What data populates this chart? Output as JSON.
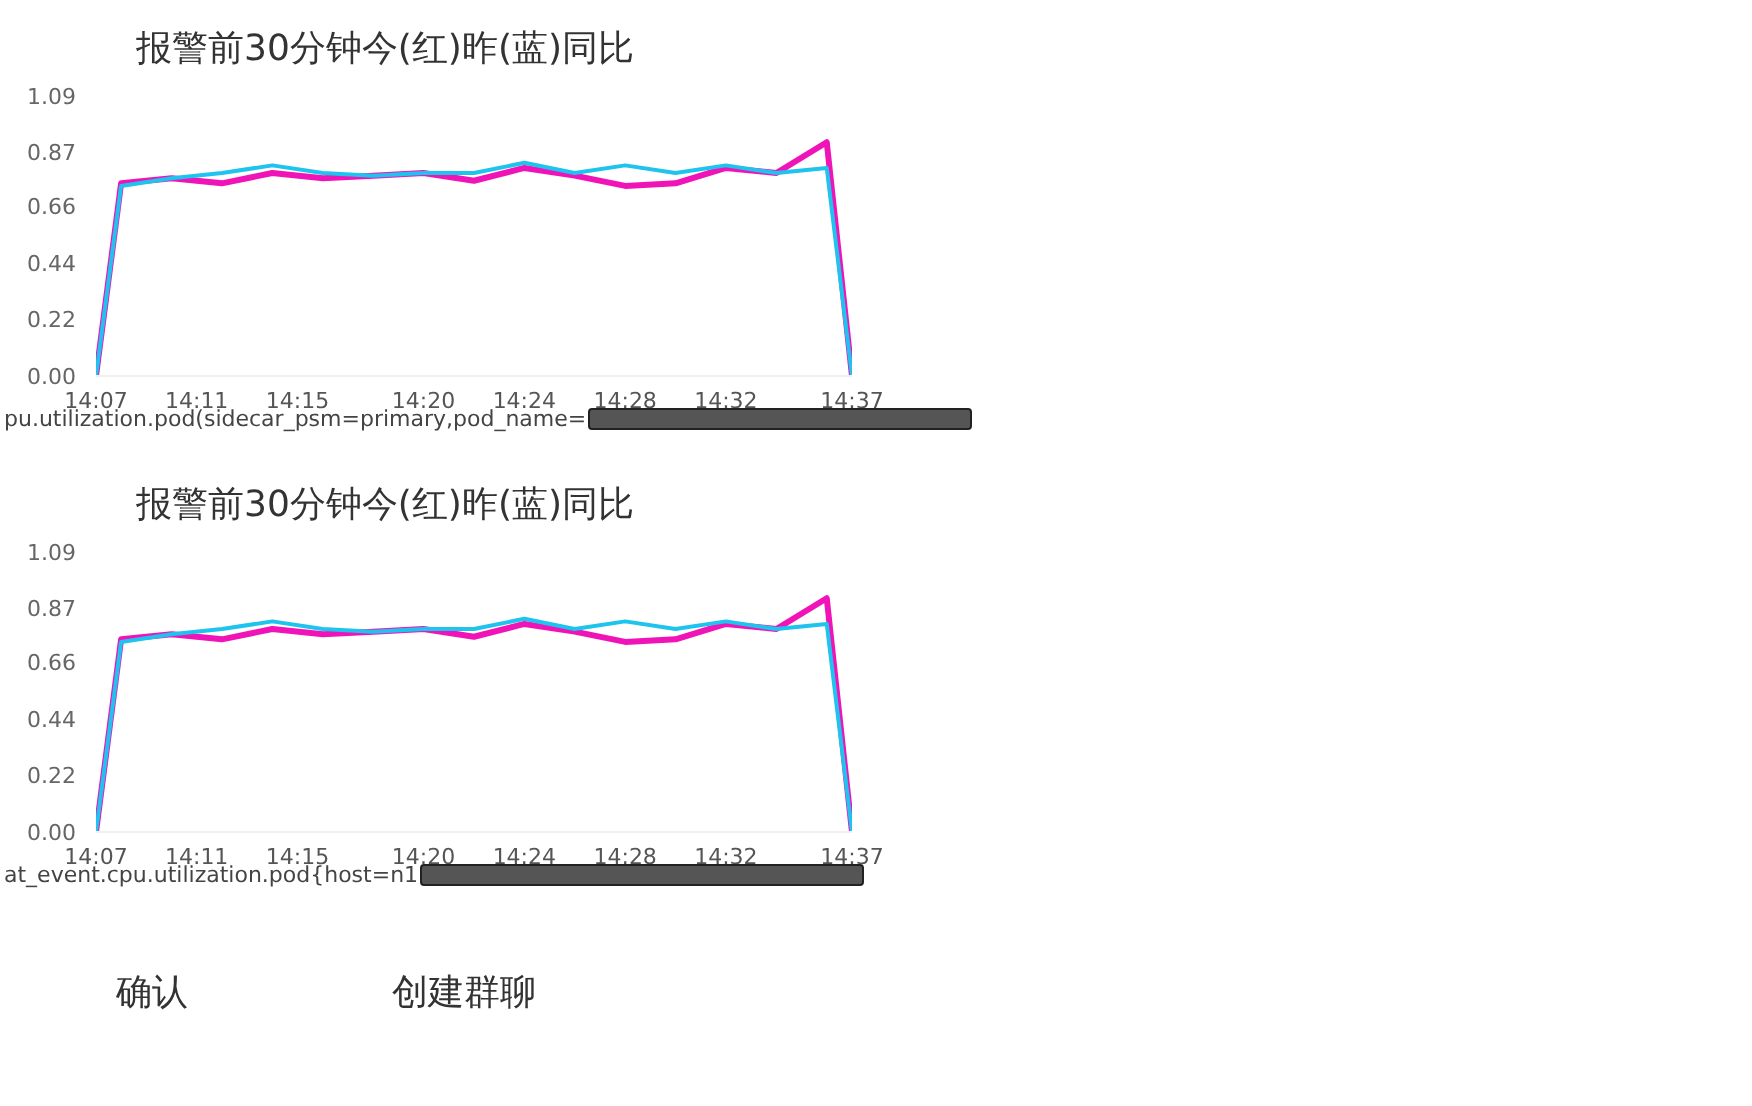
{
  "chart_data": [
    {
      "type": "line",
      "title": "报警前30分钟今(红)昨(蓝)同比",
      "x": [
        14.1167,
        14.1333,
        14.1667,
        14.2,
        14.2333,
        14.2667,
        14.3,
        14.3333,
        14.3667,
        14.4,
        14.4333,
        14.4667,
        14.5,
        14.5333,
        14.5667,
        14.6,
        14.6167
      ],
      "series": [
        {
          "color": "#f014b8",
          "values": [
            0,
            0.75,
            0.77,
            0.75,
            0.79,
            0.77,
            0.78,
            0.79,
            0.76,
            0.81,
            0.78,
            0.74,
            0.75,
            0.81,
            0.79,
            0.91,
            0
          ]
        },
        {
          "color": "#1ec3ee",
          "values": [
            0,
            0.74,
            0.77,
            0.79,
            0.82,
            0.79,
            0.78,
            0.79,
            0.79,
            0.83,
            0.79,
            0.82,
            0.79,
            0.82,
            0.79,
            0.81,
            0
          ]
        }
      ],
      "xlim": [
        14.1167,
        14.6167
      ],
      "xticks": [
        {
          "value": 14.1167,
          "label": "14:07"
        },
        {
          "value": 14.1833,
          "label": "14:11"
        },
        {
          "value": 14.25,
          "label": "14:15"
        },
        {
          "value": 14.3333,
          "label": "14:20"
        },
        {
          "value": 14.4,
          "label": "14:24"
        },
        {
          "value": 14.4667,
          "label": "14:28"
        },
        {
          "value": 14.5333,
          "label": "14:32"
        },
        {
          "value": 14.6167,
          "label": "14:37"
        }
      ],
      "ylim": [
        0,
        1.09
      ],
      "yticks": [
        {
          "value": 0,
          "label": "0.00"
        },
        0.22,
        0.44,
        0.66,
        0.87,
        1.09
      ],
      "grid": false,
      "legend": false,
      "marker": "none",
      "line_style": "solid",
      "annotations": [
        "pu.utilization.pod(sidecar_psm=primary,pod_name="
      ]
    },
    {
      "type": "line",
      "title": "报警前30分钟今(红)昨(蓝)同比",
      "x": [
        14.1167,
        14.1333,
        14.1667,
        14.2,
        14.2333,
        14.2667,
        14.3,
        14.3333,
        14.3667,
        14.4,
        14.4333,
        14.4667,
        14.5,
        14.5333,
        14.5667,
        14.6,
        14.6167
      ],
      "series": [
        {
          "color": "#f014b8",
          "values": [
            0,
            0.75,
            0.77,
            0.75,
            0.79,
            0.77,
            0.78,
            0.79,
            0.76,
            0.81,
            0.78,
            0.74,
            0.75,
            0.81,
            0.79,
            0.91,
            0
          ]
        },
        {
          "color": "#1ec3ee",
          "values": [
            0,
            0.74,
            0.77,
            0.79,
            0.82,
            0.79,
            0.78,
            0.79,
            0.79,
            0.83,
            0.79,
            0.82,
            0.79,
            0.82,
            0.79,
            0.81,
            0
          ]
        }
      ],
      "xlim": [
        14.1167,
        14.6167
      ],
      "xticks": [
        {
          "value": 14.1167,
          "label": "14:07"
        },
        {
          "value": 14.1833,
          "label": "14:11"
        },
        {
          "value": 14.25,
          "label": "14:15"
        },
        {
          "value": 14.3333,
          "label": "14:20"
        },
        {
          "value": 14.4,
          "label": "14:24"
        },
        {
          "value": 14.4667,
          "label": "14:28"
        },
        {
          "value": 14.5333,
          "label": "14:32"
        },
        {
          "value": 14.6167,
          "label": "14:37"
        }
      ],
      "ylim": [
        0,
        1.09
      ],
      "yticks": [
        {
          "value": 0,
          "label": "0.00"
        },
        0.22,
        0.44,
        0.66,
        0.87,
        1.09
      ],
      "grid": false,
      "legend": false,
      "marker": "none",
      "line_style": "solid",
      "annotations": [
        "at_event.cpu.utilization.pod{host=n1"
      ]
    },
    {
      "type": "other",
      "annotations": [
        "确认",
        "创建群聊"
      ]
    }
  ]
}
